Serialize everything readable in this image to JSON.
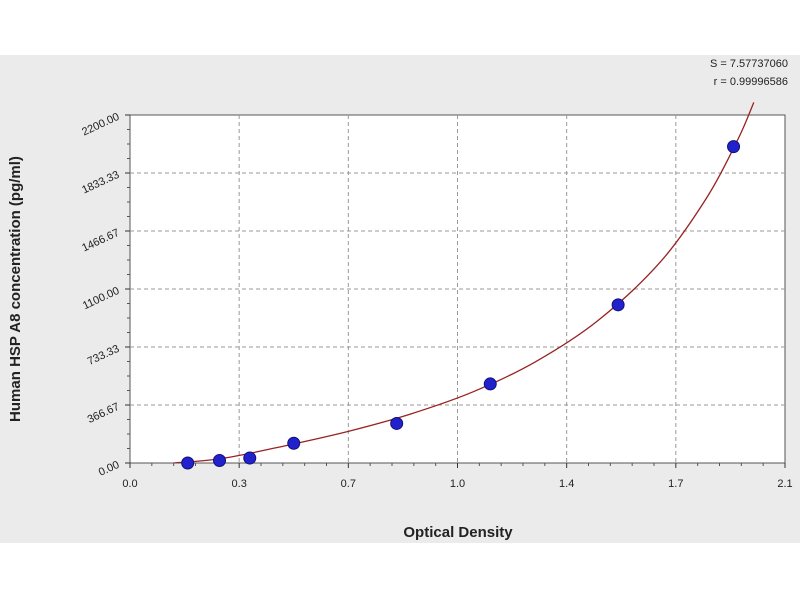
{
  "chart_data": {
    "type": "scatter",
    "xlabel": "Optical Density",
    "ylabel": "Human HSP A8 concentration (pg/ml)",
    "xlim": [
      0.0,
      2.1
    ],
    "ylim": [
      0.0,
      2200.0
    ],
    "x_ticks": [
      0.0,
      0.35,
      0.7,
      1.05,
      1.4,
      1.75,
      2.1
    ],
    "x_tick_labels": [
      "0.0",
      "0.3",
      "0.7",
      "1.0",
      "1.4",
      "1.7",
      "2.1"
    ],
    "y_ticks": [
      0.0,
      366.67,
      733.33,
      1100.0,
      1466.67,
      1833.33,
      2200.0
    ],
    "y_tick_labels": [
      "0.00",
      "366.67",
      "733.33",
      "1100.00",
      "1466.67",
      "1833.33",
      "2200.00"
    ],
    "grid": true,
    "stats": [
      "S = 7.57737060",
      "r = 0.99996586"
    ],
    "series": [
      {
        "points": [
          {
            "x": 0.185,
            "y": 0
          },
          {
            "x": 0.287,
            "y": 15.6
          },
          {
            "x": 0.384,
            "y": 31.3
          },
          {
            "x": 0.525,
            "y": 125
          },
          {
            "x": 0.855,
            "y": 250
          },
          {
            "x": 1.155,
            "y": 500
          },
          {
            "x": 1.565,
            "y": 1000
          },
          {
            "x": 1.935,
            "y": 2000
          }
        ],
        "color": "#2222cc"
      },
      {
        "curve": [
          {
            "x": 0.14,
            "y": 0
          },
          {
            "x": 0.3,
            "y": 30
          },
          {
            "x": 0.5,
            "y": 110
          },
          {
            "x": 0.7,
            "y": 200
          },
          {
            "x": 0.9,
            "y": 310
          },
          {
            "x": 1.1,
            "y": 450
          },
          {
            "x": 1.3,
            "y": 640
          },
          {
            "x": 1.5,
            "y": 900
          },
          {
            "x": 1.7,
            "y": 1270
          },
          {
            "x": 1.85,
            "y": 1680
          },
          {
            "x": 1.95,
            "y": 2050
          },
          {
            "x": 2.0,
            "y": 2280
          }
        ],
        "color": "#992222"
      }
    ]
  }
}
